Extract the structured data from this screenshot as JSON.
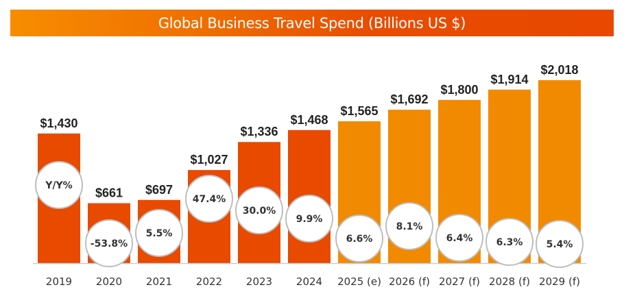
{
  "chart_data": {
    "type": "bar",
    "title": "Global Business Travel Spend (Billions US $)",
    "xlabel": "",
    "ylabel": "",
    "ylim": [
      0,
      2018
    ],
    "grid": false,
    "categories": [
      "2019",
      "2020",
      "2021",
      "2022",
      "2023",
      "2024",
      "2025 (e)",
      "2026 (f)",
      "2027 (f)",
      "2028 (f)",
      "2029 (f)"
    ],
    "values": [
      1430,
      661,
      697,
      1027,
      1336,
      1468,
      1565,
      1692,
      1800,
      1914,
      2018
    ],
    "value_labels": [
      "$1,430",
      "$661",
      "$697",
      "$1,027",
      "$1,336",
      "$1,468",
      "$1,565",
      "$1,692",
      "$1,800",
      "$1,914",
      "$2,018"
    ],
    "yoy_labels": [
      "Y/Y%",
      "-53.8%",
      "5.5%",
      "47.4%",
      "30.0%",
      "9.9%",
      "6.6%",
      "8.1%",
      "6.4%",
      "6.3%",
      "5.4%"
    ],
    "series_types": [
      "actual",
      "actual",
      "actual",
      "actual",
      "actual",
      "actual",
      "estimate",
      "forecast",
      "forecast",
      "forecast",
      "forecast"
    ],
    "colors": {
      "actual": "#e84a00",
      "projected": "#f28a00",
      "axis": "#cccccc",
      "bubble_border": "#bdbdbd"
    }
  }
}
